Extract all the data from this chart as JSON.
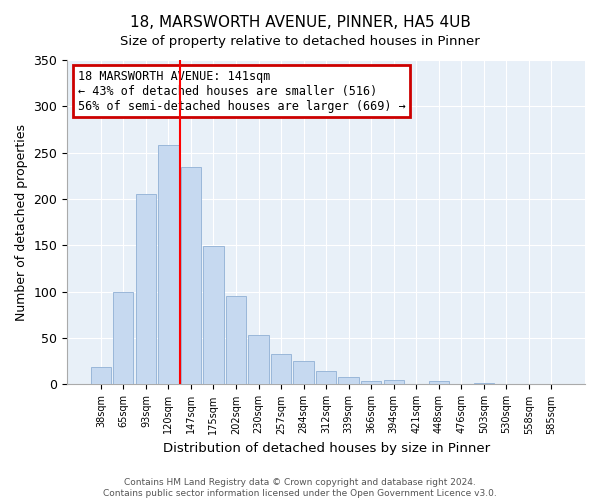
{
  "title": "18, MARSWORTH AVENUE, PINNER, HA5 4UB",
  "subtitle": "Size of property relative to detached houses in Pinner",
  "xlabel": "Distribution of detached houses by size in Pinner",
  "ylabel": "Number of detached properties",
  "bar_labels": [
    "38sqm",
    "65sqm",
    "93sqm",
    "120sqm",
    "147sqm",
    "175sqm",
    "202sqm",
    "230sqm",
    "257sqm",
    "284sqm",
    "312sqm",
    "339sqm",
    "366sqm",
    "394sqm",
    "421sqm",
    "448sqm",
    "476sqm",
    "503sqm",
    "530sqm",
    "558sqm",
    "585sqm"
  ],
  "bar_heights": [
    19,
    100,
    205,
    258,
    235,
    149,
    95,
    53,
    33,
    25,
    14,
    8,
    4,
    5,
    0,
    4,
    0,
    2,
    0,
    0,
    1
  ],
  "bar_color": "#c6d9f0",
  "bar_edge_color": "#9ab7d9",
  "redline_x": 3.5,
  "annotation_title": "18 MARSWORTH AVENUE: 141sqm",
  "annotation_line1": "← 43% of detached houses are smaller (516)",
  "annotation_line2": "56% of semi-detached houses are larger (669) →",
  "annotation_box_color": "#ffffff",
  "annotation_box_edge": "#cc0000",
  "ylim": [
    0,
    350
  ],
  "yticks": [
    0,
    50,
    100,
    150,
    200,
    250,
    300,
    350
  ],
  "plot_bg_color": "#e8f0f8",
  "grid_color": "#ffffff",
  "footer1": "Contains HM Land Registry data © Crown copyright and database right 2024.",
  "footer2": "Contains public sector information licensed under the Open Government Licence v3.0."
}
